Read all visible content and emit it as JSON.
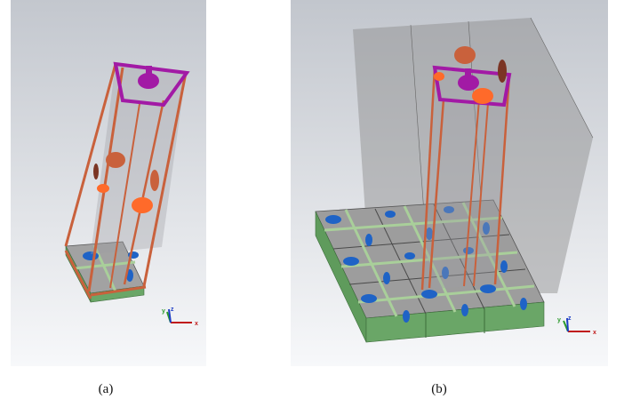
{
  "figure": {
    "panels": [
      {
        "caption": "(a)",
        "axes": {
          "x": "x",
          "y": "y",
          "z": "z"
        }
      },
      {
        "caption": "(b)",
        "axes": {
          "x": "x",
          "y": "y",
          "z": "z"
        }
      }
    ]
  },
  "colors": {
    "background_top": "#c4c8cf",
    "background_bottom": "#f6f7f9",
    "copper": "#c9613c",
    "port_magenta": "#a21aa5",
    "substrate_green": "#5f9b5c",
    "patch_green": "#a9cf9a",
    "blue_feature": "#1f63c6",
    "orange_element": "#ff6a2a",
    "translucent_box": "#8a8a8a"
  }
}
